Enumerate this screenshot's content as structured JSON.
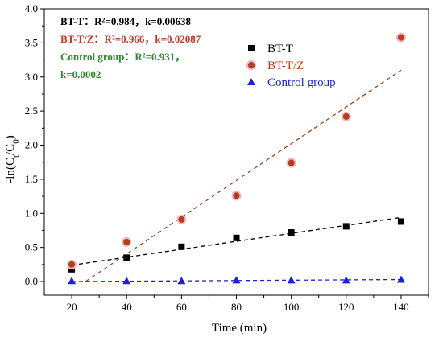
{
  "chart_data": {
    "type": "scatter",
    "xlabel": "Time (min)",
    "ylabel_main": "-ln(C",
    "ylabel_sub1": "t",
    "ylabel_mid": "/C",
    "ylabel_sub2": "0",
    "ylabel_end": ")",
    "xlim": [
      10,
      150
    ],
    "ylim": [
      -0.2,
      4.0
    ],
    "x_ticks": [
      20,
      40,
      60,
      80,
      100,
      120,
      140
    ],
    "y_ticks": [
      0.0,
      0.5,
      1.0,
      1.5,
      2.0,
      2.5,
      3.0,
      3.5,
      4.0
    ],
    "x_tick_labels": [
      "20",
      "40",
      "60",
      "80",
      "100",
      "120",
      "140"
    ],
    "y_tick_labels": [
      "0.0",
      "0.5",
      "1.0",
      "1.5",
      "2.0",
      "2.5",
      "3.0",
      "3.5",
      "4.0"
    ],
    "grid": false,
    "legend_position": "upper-right",
    "series": [
      {
        "name": "BT-T",
        "color": "#000000",
        "marker": "square",
        "x": [
          20,
          40,
          60,
          80,
          100,
          120,
          140
        ],
        "y": [
          0.18,
          0.35,
          0.51,
          0.64,
          0.72,
          0.81,
          0.88
        ],
        "fit": {
          "x": [
            20,
            140
          ],
          "y": [
            0.24,
            0.94
          ]
        }
      },
      {
        "name": "BT-T/Z",
        "color": "#b0401a",
        "marker": "circle",
        "x": [
          20,
          40,
          60,
          80,
          100,
          120,
          140
        ],
        "y": [
          0.25,
          0.58,
          0.91,
          1.26,
          1.74,
          2.42,
          3.58
        ],
        "fit": {
          "x": [
            25,
            140
          ],
          "y": [
            0.0,
            3.1
          ]
        }
      },
      {
        "name": "Control group",
        "color": "#1f1fd6",
        "marker": "triangle",
        "x": [
          20,
          40,
          60,
          80,
          100,
          120,
          140
        ],
        "y": [
          0.01,
          0.01,
          0.01,
          0.02,
          0.02,
          0.02,
          0.03
        ],
        "fit": {
          "x": [
            20,
            140
          ],
          "y": [
            0.0,
            0.03
          ]
        }
      }
    ],
    "annotations": [
      {
        "label": "BT-T：",
        "values": "R²=0.984，k=0.00638",
        "label_color": "#000000",
        "value_color": "#000000"
      },
      {
        "label": "BT-T/Z：",
        "values": "R²=0.966，k=0.02087",
        "label_color": "#c0392b",
        "value_color": "#c0392b"
      },
      {
        "label": "Control group：",
        "values": "R²=0.931，",
        "label_color": "#2e8b2e",
        "value_color": "#2e8b2e"
      },
      {
        "label": "",
        "values": "k=0.0002",
        "label_color": "#2e8b2e",
        "value_color": "#2e8b2e"
      }
    ]
  }
}
